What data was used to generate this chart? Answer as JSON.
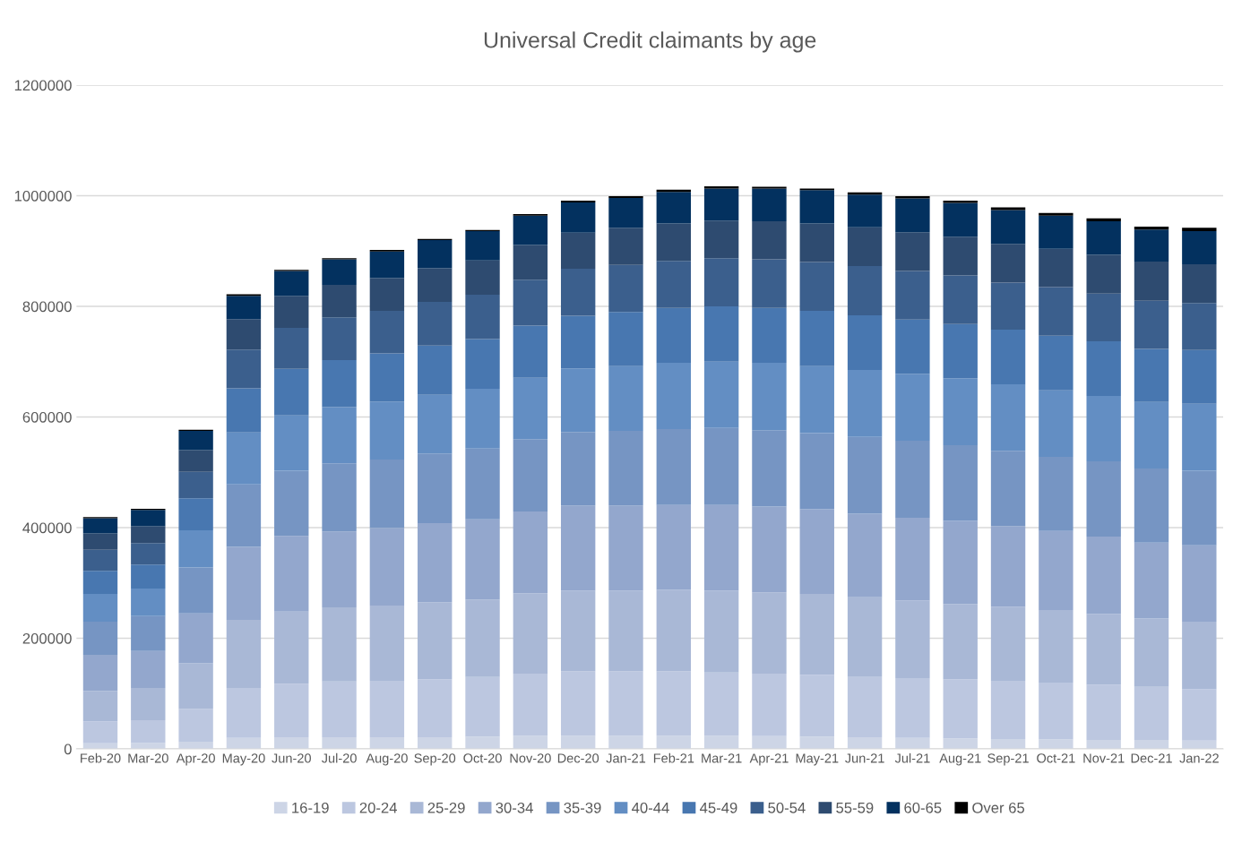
{
  "chart_data": {
    "type": "bar",
    "title": "Universal Credit claimants by age",
    "stacked": true,
    "legend": "bottom",
    "grid": "y",
    "categories": [
      "Feb-20",
      "Mar-20",
      "Apr-20",
      "May-20",
      "Jun-20",
      "Jul-20",
      "Aug-20",
      "Sep-20",
      "Oct-20",
      "Nov-20",
      "Dec-20",
      "Jan-21",
      "Feb-21",
      "Mar-21",
      "Apr-21",
      "May-21",
      "Jun-21",
      "Jul-21",
      "Aug-21",
      "Sep-21",
      "Oct-21",
      "Nov-21",
      "Dec-21",
      "Jan-22"
    ],
    "ylim": [
      0,
      1200000
    ],
    "yticks": [
      0,
      200000,
      400000,
      600000,
      800000,
      1000000,
      1200000
    ],
    "series": [
      {
        "name": "16-19",
        "color": "#cdd5e6",
        "values": [
          10000,
          11000,
          13000,
          20000,
          21000,
          21000,
          21000,
          21000,
          22000,
          24000,
          24000,
          24000,
          24000,
          24000,
          23000,
          22000,
          21000,
          20000,
          19000,
          18000,
          17000,
          16000,
          16000,
          15000
        ]
      },
      {
        "name": "20-24",
        "color": "#bcc7e0",
        "values": [
          40000,
          41000,
          59000,
          90000,
          97000,
          101000,
          102000,
          105000,
          108000,
          112000,
          116000,
          116000,
          116000,
          114000,
          113000,
          112000,
          110000,
          108000,
          107000,
          105000,
          103000,
          100000,
          96000,
          93000
        ]
      },
      {
        "name": "25-29",
        "color": "#a9b8d6",
        "values": [
          55000,
          58000,
          83000,
          123000,
          130000,
          134000,
          136000,
          139000,
          140000,
          145000,
          146000,
          146000,
          148000,
          148000,
          147000,
          146000,
          143000,
          140000,
          136000,
          134000,
          131000,
          128000,
          124000,
          122000
        ]
      },
      {
        "name": "30-34",
        "color": "#93a7cd",
        "values": [
          65000,
          67000,
          90000,
          132000,
          137000,
          137000,
          140000,
          143000,
          145000,
          148000,
          154000,
          154000,
          153000,
          155000,
          155000,
          153000,
          151000,
          150000,
          150000,
          146000,
          143000,
          140000,
          137000,
          138000
        ]
      },
      {
        "name": "35-39",
        "color": "#7695c3",
        "values": [
          60000,
          63000,
          83000,
          113000,
          118000,
          123000,
          124000,
          126000,
          128000,
          131000,
          133000,
          135000,
          137000,
          139000,
          138000,
          138000,
          139000,
          139000,
          137000,
          136000,
          134000,
          136000,
          134000,
          135000
        ]
      },
      {
        "name": "40-44",
        "color": "#638ec3",
        "values": [
          50000,
          50000,
          67000,
          94000,
          100000,
          102000,
          105000,
          106000,
          108000,
          111000,
          115000,
          117000,
          120000,
          120000,
          122000,
          121000,
          121000,
          121000,
          121000,
          120000,
          120000,
          118000,
          120000,
          121000
        ]
      },
      {
        "name": "45-49",
        "color": "#4877b0",
        "values": [
          42000,
          43000,
          58000,
          80000,
          84000,
          85000,
          87000,
          89000,
          90000,
          94000,
          95000,
          98000,
          99000,
          100000,
          99000,
          100000,
          99000,
          98000,
          98000,
          99000,
          99000,
          99000,
          96000,
          97000
        ]
      },
      {
        "name": "50-54",
        "color": "#3b5f8d",
        "values": [
          38000,
          39000,
          48000,
          70000,
          74000,
          77000,
          77000,
          79000,
          80000,
          83000,
          85000,
          85000,
          85000,
          87000,
          88000,
          88000,
          89000,
          88000,
          88000,
          85000,
          88000,
          86000,
          87000,
          85000
        ]
      },
      {
        "name": "55-59",
        "color": "#2e4b70",
        "values": [
          30000,
          31000,
          39000,
          55000,
          58000,
          59000,
          59000,
          61000,
          62000,
          63000,
          65000,
          67000,
          68000,
          68000,
          69000,
          70000,
          70000,
          70000,
          70000,
          70000,
          69000,
          70000,
          71000,
          70000
        ]
      },
      {
        "name": "60-65",
        "color": "#03315f",
        "values": [
          27000,
          29000,
          35000,
          42000,
          45000,
          46000,
          48000,
          51000,
          53000,
          53000,
          55000,
          54000,
          57000,
          58000,
          59000,
          60000,
          59000,
          61000,
          61000,
          61000,
          60000,
          61000,
          58000,
          60000
        ]
      },
      {
        "name": "Over 65",
        "color": "#000000",
        "values": [
          2000,
          2000,
          2000,
          3000,
          2000,
          2000,
          3000,
          2000,
          2000,
          3000,
          3000,
          3000,
          4000,
          4000,
          3000,
          3000,
          4000,
          4000,
          4000,
          5000,
          5000,
          5000,
          5000,
          6000
        ]
      }
    ]
  }
}
